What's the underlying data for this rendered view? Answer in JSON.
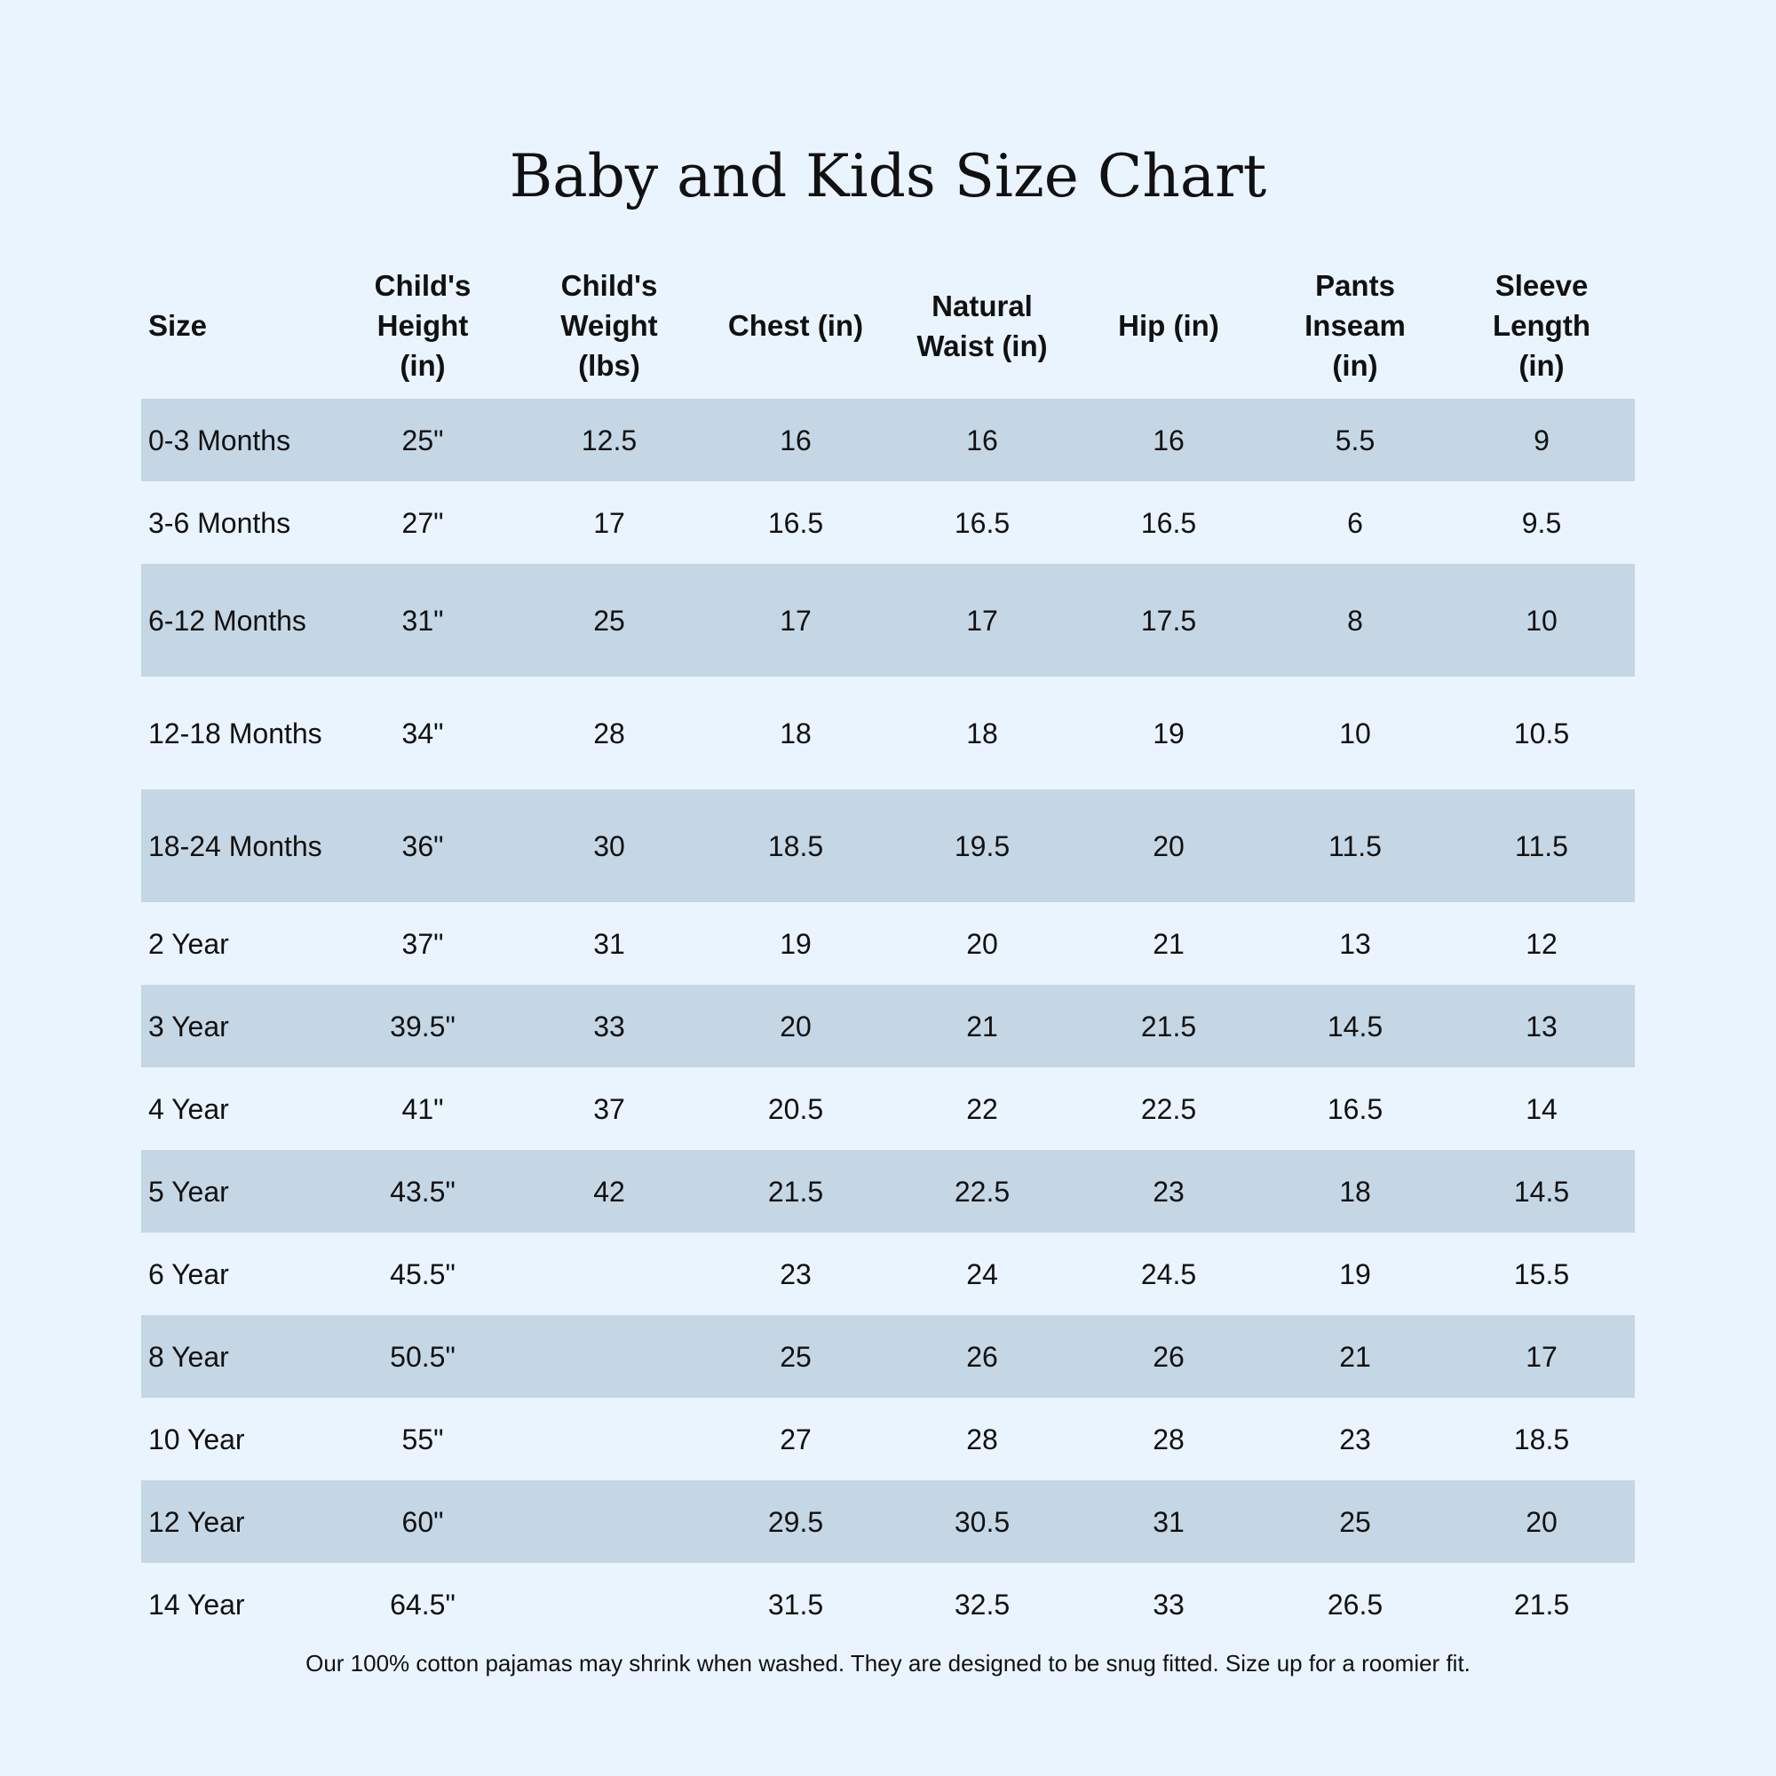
{
  "title": "Baby and Kids Size Chart",
  "colors": {
    "background": "#eaf4fe",
    "shaded_row": "#c5d7e5"
  },
  "headers": [
    "Size",
    "Child's Height (in)",
    "Child's Weight (lbs)",
    "Chest (in)",
    "Natural Waist (in)",
    "Hip (in)",
    "Pants Inseam (in)",
    "Sleeve Length (in)"
  ],
  "rows": [
    [
      "0-3 Months",
      "25\"",
      "12.5",
      "16",
      "16",
      "16",
      "5.5",
      "9"
    ],
    [
      "3-6 Months",
      "27\"",
      "17",
      "16.5",
      "16.5",
      "16.5",
      "6",
      "9.5"
    ],
    [
      "6-12 Months",
      "31\"",
      "25",
      "17",
      "17",
      "17.5",
      "8",
      "10"
    ],
    [
      "12-18 Months",
      "34\"",
      "28",
      "18",
      "18",
      "19",
      "10",
      "10.5"
    ],
    [
      "18-24 Months",
      "36\"",
      "30",
      "18.5",
      "19.5",
      "20",
      "11.5",
      "11.5"
    ],
    [
      "2 Year",
      "37\"",
      "31",
      "19",
      "20",
      "21",
      "13",
      "12"
    ],
    [
      "3 Year",
      "39.5\"",
      "33",
      "20",
      "21",
      "21.5",
      "14.5",
      "13"
    ],
    [
      "4 Year",
      "41\"",
      "37",
      "20.5",
      "22",
      "22.5",
      "16.5",
      "14"
    ],
    [
      "5 Year",
      "43.5\"",
      "42",
      "21.5",
      "22.5",
      "23",
      "18",
      "14.5"
    ],
    [
      "6 Year",
      "45.5\"",
      "",
      "23",
      "24",
      "24.5",
      "19",
      "15.5"
    ],
    [
      "8 Year",
      "50.5\"",
      "",
      "25",
      "26",
      "26",
      "21",
      "17"
    ],
    [
      "10 Year",
      "55\"",
      "",
      "27",
      "28",
      "28",
      "23",
      "18.5"
    ],
    [
      "12 Year",
      "60\"",
      "",
      "29.5",
      "30.5",
      "31",
      "25",
      "20"
    ],
    [
      "14 Year",
      "64.5\"",
      "",
      "31.5",
      "32.5",
      "33",
      "26.5",
      "21.5"
    ]
  ],
  "footer": "Our 100% cotton pajamas may shrink when washed. They are designed to be snug fitted. Size up for a roomier fit."
}
